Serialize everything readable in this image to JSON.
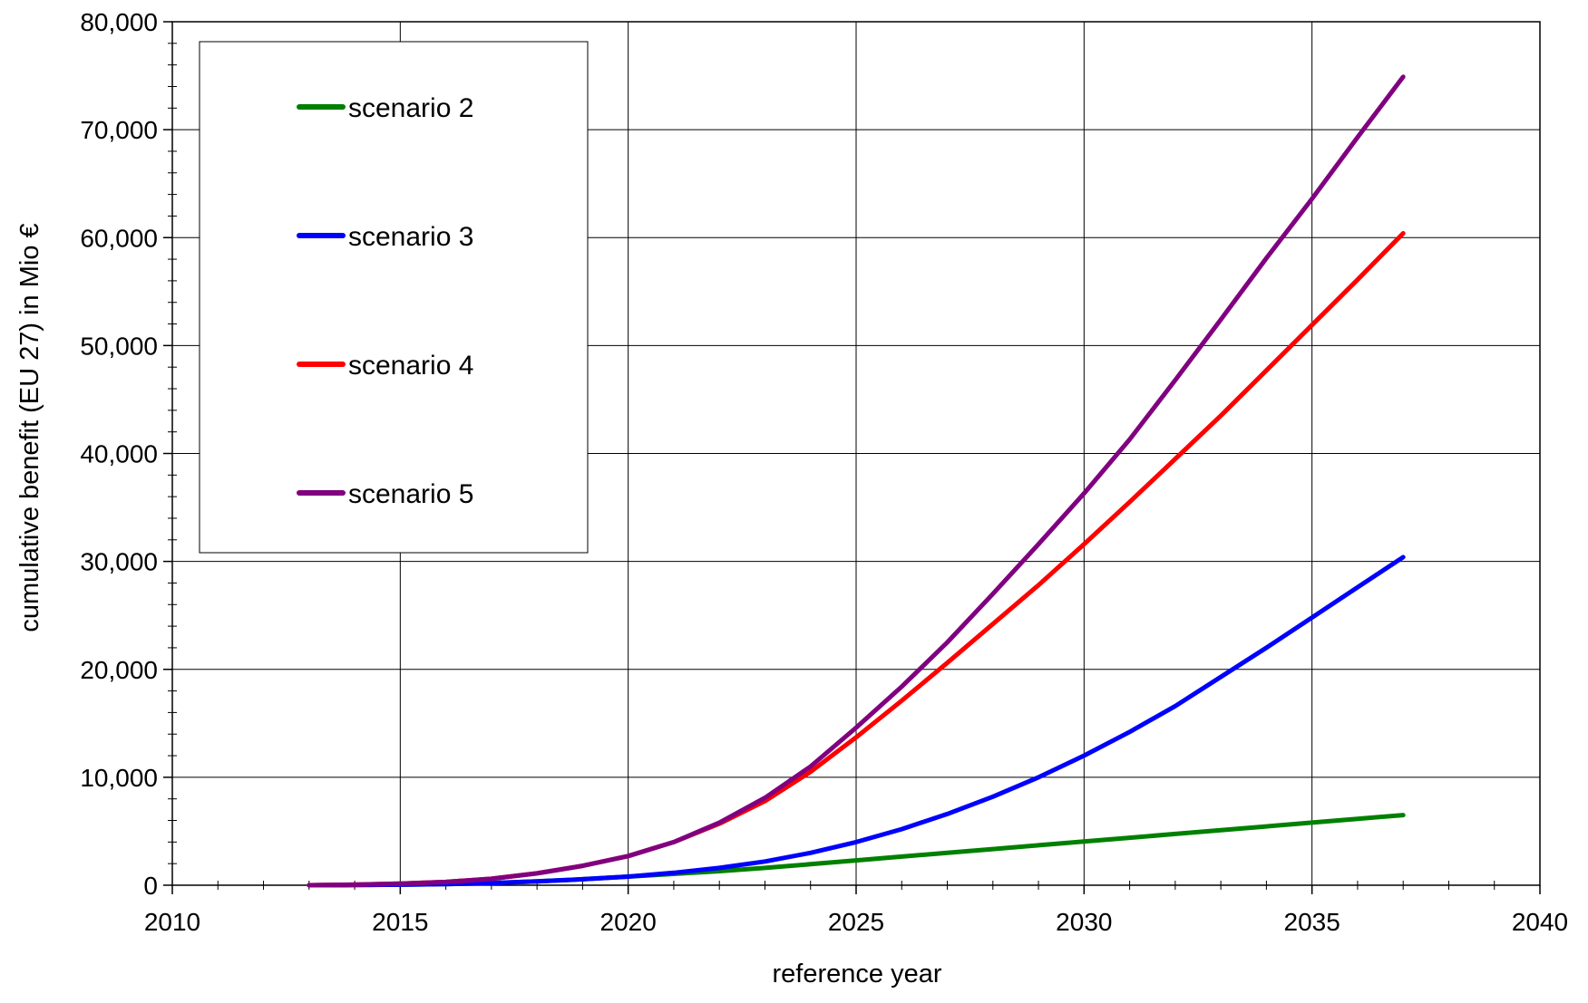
{
  "chart_data": {
    "type": "line",
    "title": "",
    "xlabel": "reference year",
    "ylabel": "cumulative benefit (EU 27) in Mio €",
    "xlim": [
      2010,
      2040
    ],
    "ylim": [
      0,
      80000
    ],
    "x_ticks": [
      2010,
      2015,
      2020,
      2025,
      2030,
      2035,
      2040
    ],
    "x_tick_labels": [
      "2010",
      "2015",
      "2020",
      "2025",
      "2030",
      "2035",
      "2040"
    ],
    "y_ticks": [
      0,
      10000,
      20000,
      30000,
      40000,
      50000,
      60000,
      70000,
      80000
    ],
    "y_tick_labels": [
      "0",
      "10,000",
      "20,000",
      "30,000",
      "40,000",
      "50,000",
      "60,000",
      "70,000",
      "80,000"
    ],
    "grid": true,
    "legend_position": "top-left",
    "x": [
      2013,
      2014,
      2015,
      2016,
      2017,
      2018,
      2019,
      2020,
      2021,
      2022,
      2023,
      2024,
      2025,
      2026,
      2027,
      2028,
      2029,
      2030,
      2031,
      2032,
      2033,
      2034,
      2035,
      2036,
      2037
    ],
    "series": [
      {
        "name": "scenario 2",
        "color": "#008000",
        "values": [
          0,
          20,
          50,
          100,
          200,
          350,
          550,
          800,
          1050,
          1300,
          1600,
          1950,
          2300,
          2650,
          3000,
          3350,
          3700,
          4050,
          4400,
          4750,
          5100,
          5450,
          5800,
          6150,
          6500
        ]
      },
      {
        "name": "scenario 3",
        "color": "#0000ff",
        "values": [
          0,
          20,
          50,
          100,
          200,
          350,
          550,
          800,
          1150,
          1600,
          2200,
          3000,
          4000,
          5200,
          6600,
          8200,
          10000,
          12000,
          14200,
          16600,
          19300,
          22000,
          24800,
          27600,
          30400
        ]
      },
      {
        "name": "scenario 4",
        "color": "#ff0000",
        "values": [
          0,
          50,
          150,
          300,
          600,
          1100,
          1800,
          2700,
          4000,
          5700,
          7800,
          10500,
          13700,
          17100,
          20600,
          24200,
          27800,
          31600,
          35500,
          39500,
          43500,
          47700,
          51900,
          56100,
          60400
        ]
      },
      {
        "name": "scenario 5",
        "color": "#800080",
        "values": [
          0,
          50,
          150,
          300,
          600,
          1100,
          1800,
          2700,
          4000,
          5800,
          8100,
          11000,
          14600,
          18400,
          22500,
          27000,
          31600,
          36300,
          41300,
          46800,
          52400,
          58100,
          63600,
          69300,
          74900
        ]
      }
    ]
  }
}
